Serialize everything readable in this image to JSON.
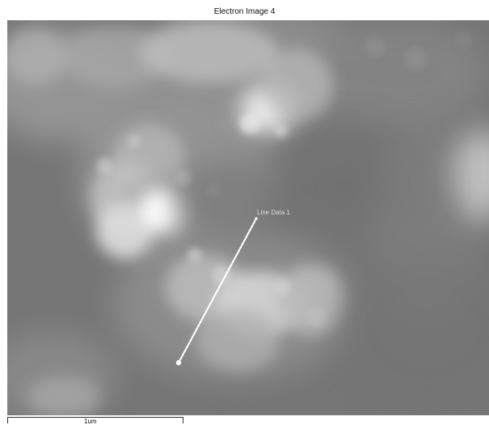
{
  "window": {
    "title": "Electron Image 4"
  },
  "image": {
    "annotation_label": "Line Data 1",
    "scale_bar_label": "1um"
  },
  "colors": {
    "background": "#777777",
    "trace": "#ffffff",
    "title_text": "#111111",
    "scale_bar": "#333333"
  }
}
